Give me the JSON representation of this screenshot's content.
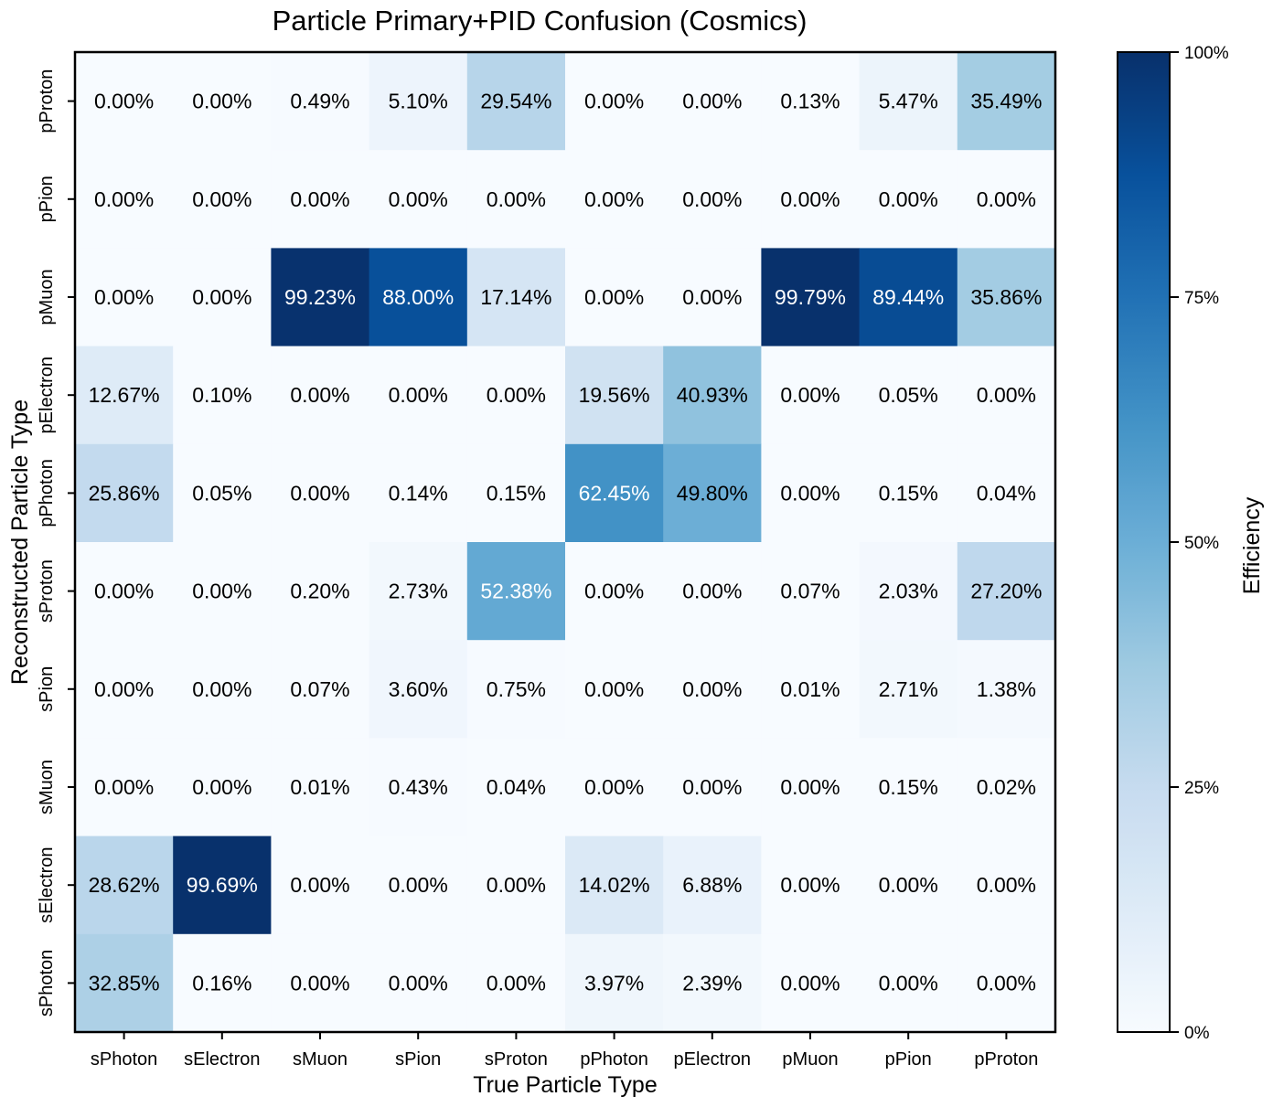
{
  "chart_data": {
    "type": "heatmap",
    "title": "Particle Primary+PID Confusion (Cosmics)",
    "xlabel": "True Particle Type",
    "ylabel": "Reconstructed Particle Type",
    "x_categories": [
      "sPhoton",
      "sElectron",
      "sMuon",
      "sPion",
      "sProton",
      "pPhoton",
      "pElectron",
      "pMuon",
      "pPion",
      "pProton"
    ],
    "y_categories": [
      "pProton",
      "pPion",
      "pMuon",
      "pElectron",
      "pPhoton",
      "sProton",
      "sPion",
      "sMuon",
      "sElectron",
      "sPhoton"
    ],
    "values": [
      [
        0.0,
        0.0,
        0.49,
        5.1,
        29.54,
        0.0,
        0.0,
        0.13,
        5.47,
        35.49
      ],
      [
        0.0,
        0.0,
        0.0,
        0.0,
        0.0,
        0.0,
        0.0,
        0.0,
        0.0,
        0.0
      ],
      [
        0.0,
        0.0,
        99.23,
        88.0,
        17.14,
        0.0,
        0.0,
        99.79,
        89.44,
        35.86
      ],
      [
        12.67,
        0.1,
        0.0,
        0.0,
        0.0,
        19.56,
        40.93,
        0.0,
        0.05,
        0.0
      ],
      [
        25.86,
        0.05,
        0.0,
        0.14,
        0.15,
        62.45,
        49.8,
        0.0,
        0.15,
        0.04
      ],
      [
        0.0,
        0.0,
        0.2,
        2.73,
        52.38,
        0.0,
        0.0,
        0.07,
        2.03,
        27.2
      ],
      [
        0.0,
        0.0,
        0.07,
        3.6,
        0.75,
        0.0,
        0.0,
        0.01,
        2.71,
        1.38
      ],
      [
        0.0,
        0.0,
        0.01,
        0.43,
        0.04,
        0.0,
        0.0,
        0.0,
        0.15,
        0.02
      ],
      [
        28.62,
        99.69,
        0.0,
        0.0,
        0.0,
        14.02,
        6.88,
        0.0,
        0.0,
        0.0
      ],
      [
        32.85,
        0.16,
        0.0,
        0.0,
        0.0,
        3.97,
        2.39,
        0.0,
        0.0,
        0.0
      ]
    ],
    "value_format": "percent_2dp",
    "colormap": "Blues",
    "colorbar": {
      "label": "Efficiency",
      "range": [
        0,
        100
      ],
      "ticks": [
        0,
        25,
        50,
        75,
        100
      ],
      "tick_labels": [
        "0%",
        "25%",
        "50%",
        "75%",
        "100%"
      ]
    }
  }
}
